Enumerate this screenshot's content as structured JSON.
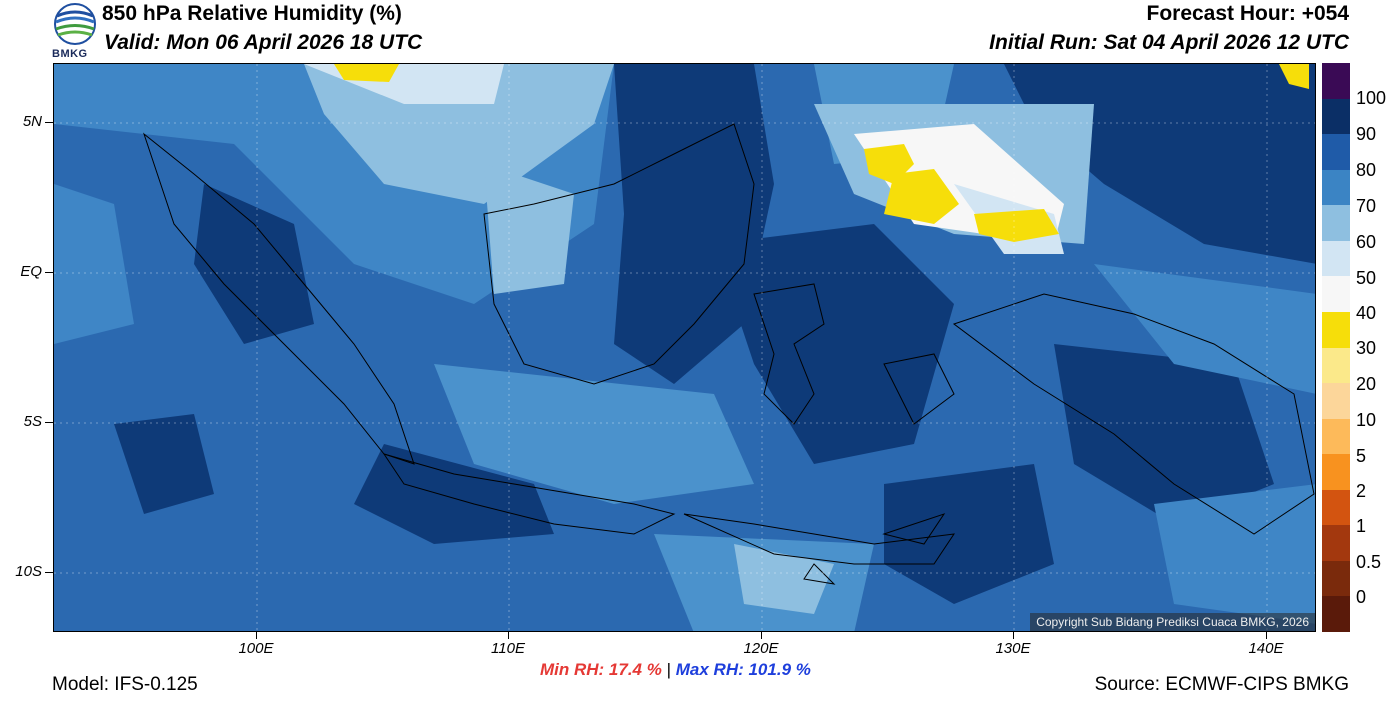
{
  "header": {
    "title": "850 hPa Relative Humidity (%)",
    "valid": "Valid: Mon 06 April 2026 18 UTC",
    "forecast_hour": "Forecast Hour: +054",
    "initial_run": "Initial Run: Sat 04 April 2026 12 UTC",
    "logo_text": "BMKG"
  },
  "map": {
    "lat_labels": [
      "5N",
      "EQ",
      "5S",
      "10S"
    ],
    "lon_labels": [
      "100E",
      "110E",
      "120E",
      "130E",
      "140E"
    ],
    "copyright": "Copyright Sub Bidang Prediksi Cuaca BMKG, 2026"
  },
  "colorbar": {
    "labels": [
      "100",
      "90",
      "80",
      "70",
      "60",
      "50",
      "40",
      "30",
      "20",
      "10",
      "5",
      "2",
      "1",
      "0.5",
      "0"
    ],
    "colors": [
      "#3a0a55",
      "#0b2f66",
      "#1f5ba8",
      "#3b84c4",
      "#8ebfe0",
      "#d2e5f3",
      "#f7f7f7",
      "#f6de0a",
      "#fbe98a",
      "#fcd69a",
      "#fdba5a",
      "#f8921f",
      "#d35410",
      "#a3380e",
      "#7a2a0c",
      "#5a1a0a",
      "#a01418",
      "#e8452c"
    ]
  },
  "footer": {
    "min_rh": "Min RH:  17.4 %",
    "separator": "|",
    "max_rh": "Max RH: 101.9 %",
    "model": "Model: IFS-0.125",
    "source": "Source: ECMWF-CIPS BMKG"
  }
}
